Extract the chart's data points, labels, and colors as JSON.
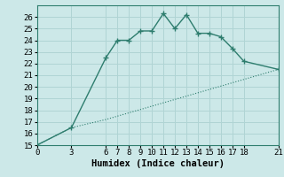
{
  "xlabel": "Humidex (Indice chaleur)",
  "ylabel": "",
  "background_color": "#cce8e8",
  "grid_color": "#b0d4d4",
  "line_color": "#2e7d6e",
  "xlim": [
    0,
    21
  ],
  "ylim": [
    15,
    27
  ],
  "yticks": [
    15,
    16,
    17,
    18,
    19,
    20,
    21,
    22,
    23,
    24,
    25,
    26
  ],
  "xticks": [
    0,
    3,
    6,
    7,
    8,
    9,
    10,
    11,
    12,
    13,
    14,
    15,
    16,
    17,
    18,
    21
  ],
  "line1_x": [
    0,
    3,
    6,
    7,
    8,
    9,
    10,
    11,
    12,
    13,
    14,
    15,
    16,
    17,
    18,
    21
  ],
  "line1_y": [
    15,
    16.5,
    22.5,
    24.0,
    24.0,
    24.8,
    24.8,
    26.3,
    25.0,
    26.2,
    24.6,
    24.6,
    24.3,
    23.3,
    22.2,
    21.5
  ],
  "line2_x": [
    0,
    3,
    6,
    21
  ],
  "line2_y": [
    15,
    16.5,
    17.2,
    21.5
  ],
  "font_family": "monospace",
  "tick_fontsize": 6.5,
  "label_fontsize": 7.5
}
